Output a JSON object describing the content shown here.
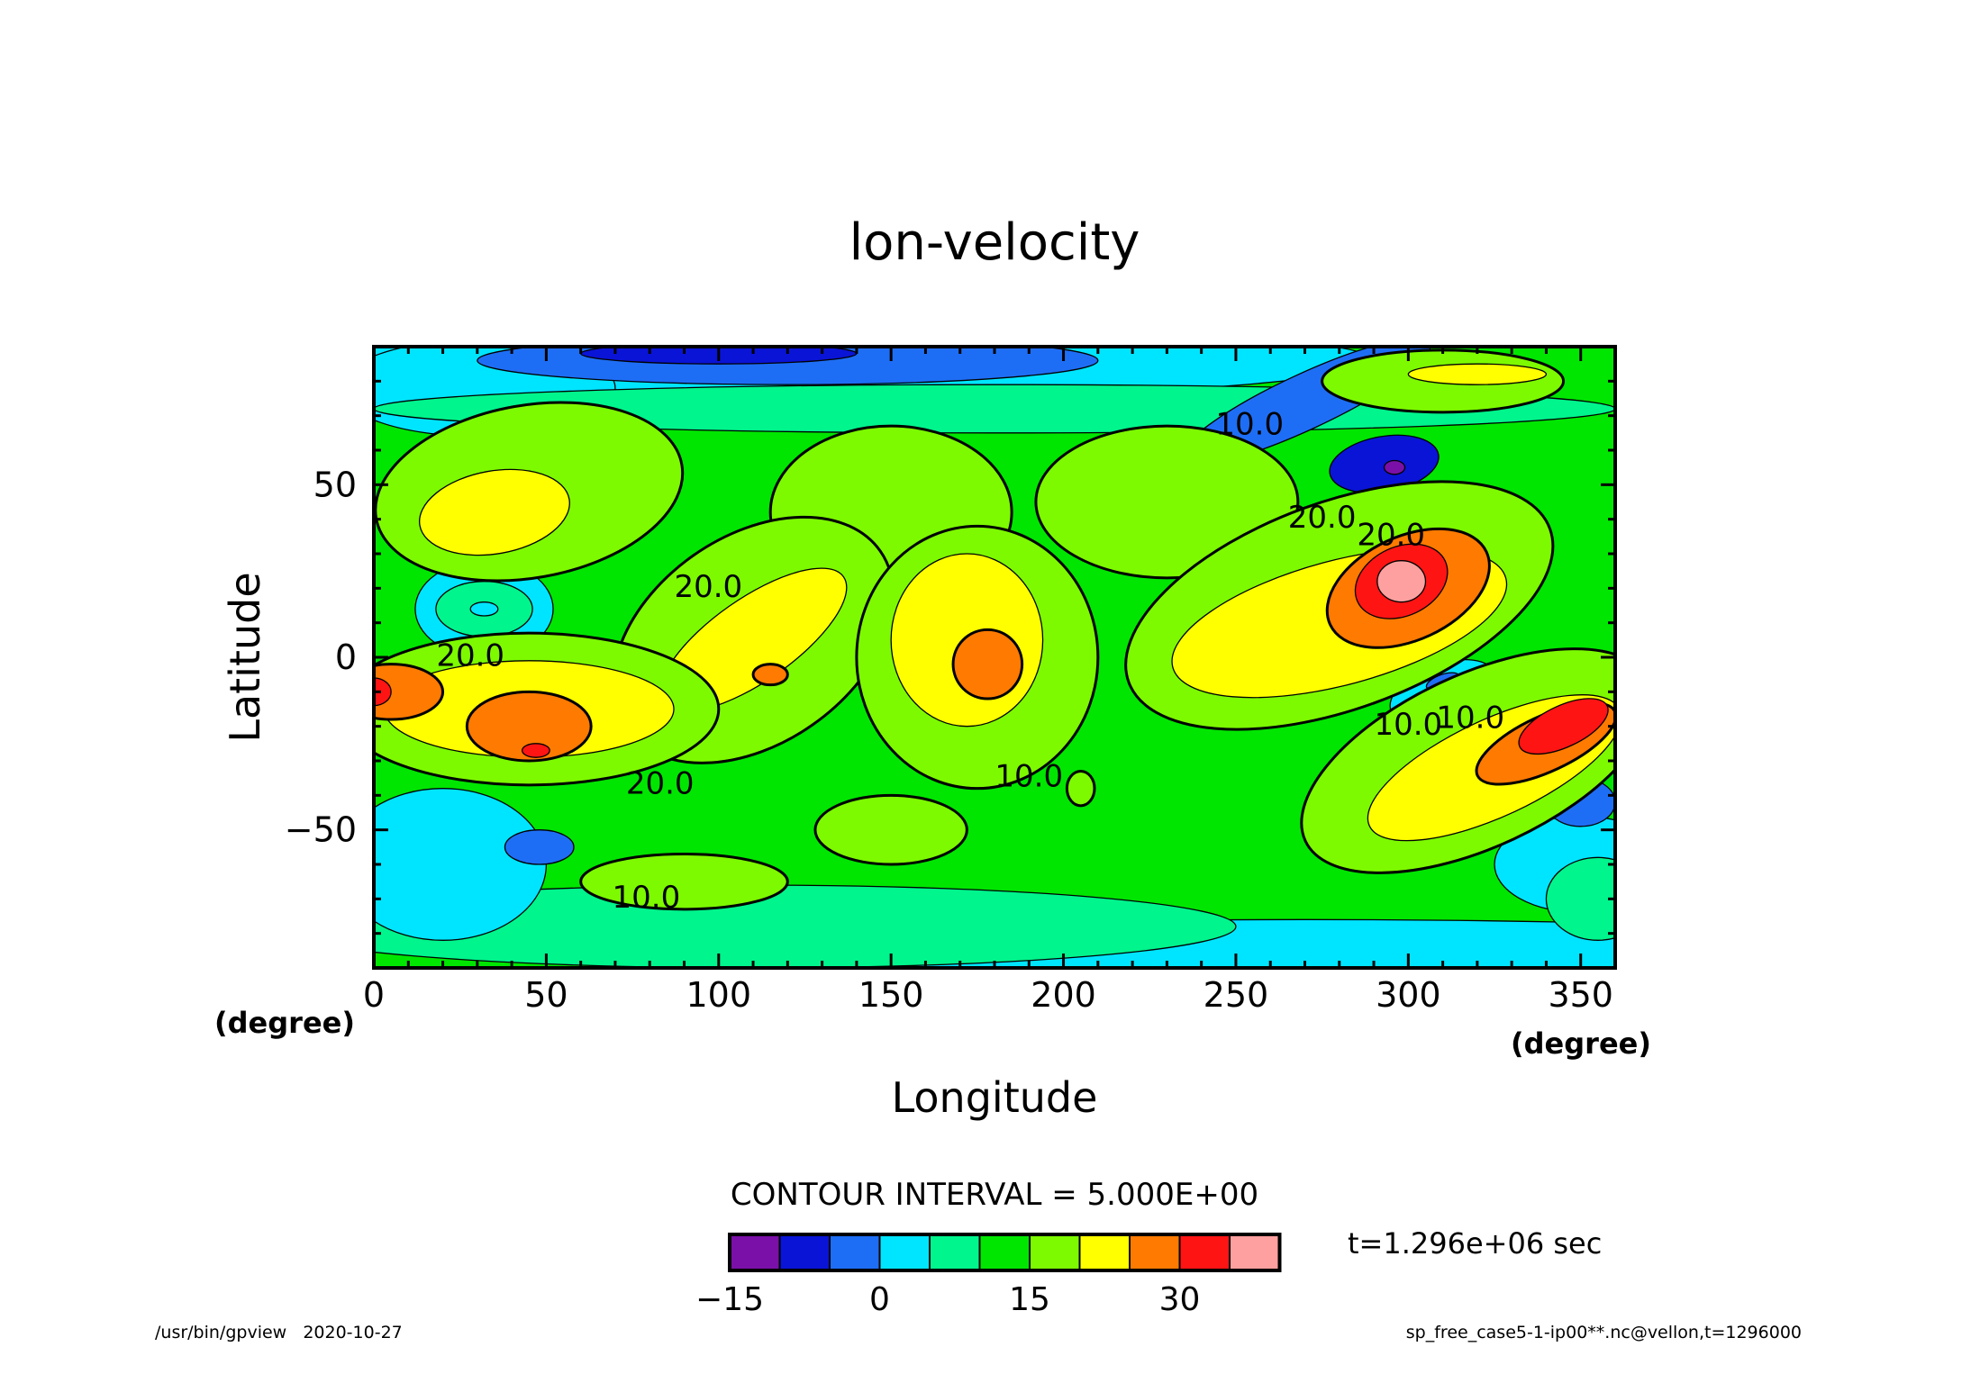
{
  "chart_data": {
    "type": "heatmap",
    "title": "lon-velocity",
    "xlabel": "Longitude",
    "ylabel": "Latitude",
    "x_unit": "(degree)",
    "y_unit": "(degree)",
    "xlim": [
      0,
      360
    ],
    "ylim": [
      -90,
      90
    ],
    "x_ticks": [
      0,
      50,
      100,
      150,
      200,
      250,
      300,
      350
    ],
    "y_ticks": [
      -50,
      0,
      50
    ],
    "levels": [
      -20,
      -15,
      -10,
      -5,
      0,
      5,
      10,
      15,
      20,
      25,
      30,
      35,
      40
    ],
    "colorbar": {
      "colors": [
        "#7a10a8",
        "#0a14d6",
        "#1e6ef5",
        "#00e5ff",
        "#00f58c",
        "#00e600",
        "#7dfa00",
        "#ffff00",
        "#ff7a00",
        "#ff1414",
        "#ffa0a0"
      ],
      "tick_labels": [
        "-15",
        "0",
        "15",
        "30"
      ]
    },
    "contour_labels": [
      "10.0",
      "20.0",
      "20.0",
      "20.0",
      "10.0",
      "20.0",
      "10.0",
      "10.0",
      "20.0",
      "10.0"
    ],
    "contour_interval_text": "CONTOUR INTERVAL = 5.000E+00",
    "time_text": "t=1.296e+06 sec",
    "grid": false
  },
  "footer": {
    "left": "/usr/bin/gpview   2020-10-27",
    "right": "sp_free_case5-1-ip00**.nc@vellon,t=1296000"
  }
}
